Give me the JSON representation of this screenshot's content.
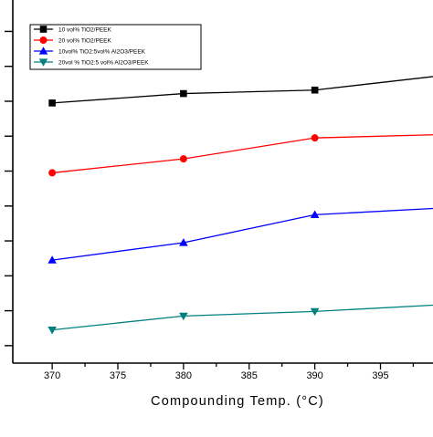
{
  "chart_data": {
    "type": "line",
    "xlabel": "Compounding Temp. (°C)",
    "x_ticks": [
      370,
      375,
      380,
      385,
      390,
      395
    ],
    "xlim": [
      367,
      399
    ],
    "ylim": [
      0,
      10.4
    ],
    "y_tick_values": [
      0.5,
      1.5,
      2.5,
      3.5,
      4.5,
      5.5,
      6.5,
      7.5,
      8.5,
      9.5
    ],
    "legend_position": "top-left",
    "series": [
      {
        "name": "10 vol% TiO2/PEEK",
        "color": "#000000",
        "marker": "square",
        "x": [
          370,
          380,
          390,
          400
        ],
        "y": [
          7.45,
          7.72,
          7.82,
          8.25
        ]
      },
      {
        "name": "20 vol% TiO2/PEEK",
        "color": "#ff0000",
        "marker": "circle",
        "x": [
          370,
          380,
          390,
          400
        ],
        "y": [
          5.45,
          5.85,
          6.45,
          6.55
        ]
      },
      {
        "name": "10vol% TiO2:5vol% Al2O3/PEEK",
        "color": "#0000ff",
        "marker": "triangle-up",
        "x": [
          370,
          380,
          390,
          400
        ],
        "y": [
          2.95,
          3.45,
          4.25,
          4.45
        ]
      },
      {
        "name": "20vol % TiO2:5 vol% Al2O3/PEEK",
        "color": "#008080",
        "marker": "triangle-down",
        "x": [
          370,
          380,
          390,
          400
        ],
        "y": [
          0.95,
          1.35,
          1.48,
          1.68
        ]
      }
    ]
  }
}
